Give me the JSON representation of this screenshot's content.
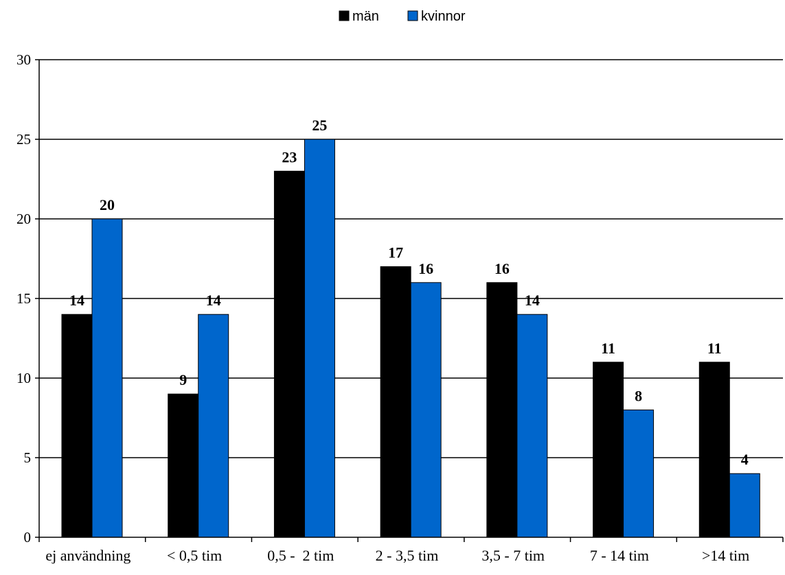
{
  "chart_data": {
    "type": "bar",
    "categories": [
      "ej användning",
      "< 0,5 tim",
      "0,5 -  2 tim",
      "2 - 3,5 tim",
      "3,5 - 7 tim",
      "7 - 14 tim",
      ">14 tim"
    ],
    "series": [
      {
        "name": "män",
        "color": "#000000",
        "values": [
          14,
          9,
          23,
          17,
          16,
          11,
          11
        ]
      },
      {
        "name": "kvinnor",
        "color": "#0066CC",
        "values": [
          20,
          14,
          25,
          16,
          14,
          8,
          4
        ]
      }
    ],
    "yticks": [
      "0",
      "5",
      "10",
      "15",
      "20",
      "25",
      "30"
    ],
    "ylim": [
      0,
      30
    ],
    "grid": true,
    "data_labels": true,
    "legend_position": "top-center"
  }
}
